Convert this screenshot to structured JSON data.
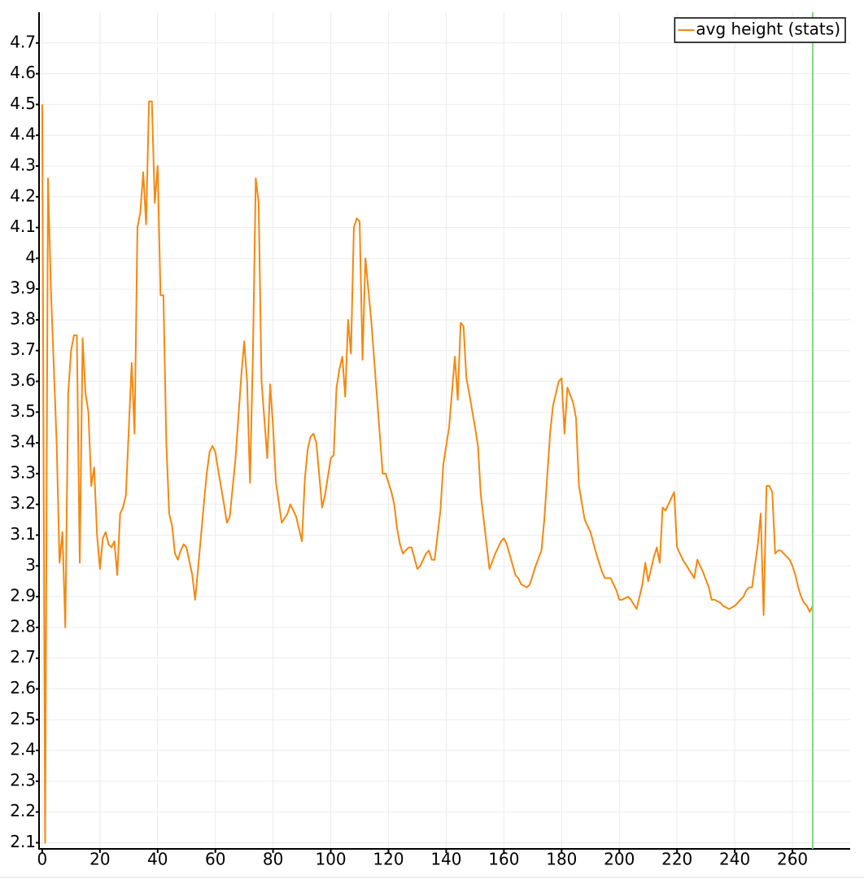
{
  "chart_data": {
    "type": "line",
    "x": [
      0,
      1,
      2,
      3,
      5,
      6,
      7,
      8,
      9,
      10,
      11,
      12,
      13,
      14,
      15,
      16,
      17,
      18,
      19,
      20,
      21,
      22,
      23,
      24,
      25,
      26,
      27,
      28,
      29,
      31,
      32,
      33,
      34,
      35,
      36,
      37,
      38,
      39,
      40,
      41,
      42,
      43,
      44,
      45,
      46,
      47,
      48,
      49,
      50,
      52,
      53,
      54,
      56,
      57,
      58,
      59,
      60,
      61,
      63,
      64,
      65,
      67,
      69,
      70,
      71,
      72,
      73,
      74,
      75,
      76,
      78,
      79,
      80,
      81,
      83,
      85,
      86,
      88,
      89,
      90,
      91,
      92,
      93,
      94,
      95,
      97,
      98,
      99,
      100,
      101,
      102,
      103,
      104,
      105,
      106,
      107,
      108,
      109,
      110,
      111,
      112,
      114,
      116,
      118,
      119,
      121,
      122,
      123,
      124,
      125,
      127,
      128,
      130,
      131,
      132,
      133,
      134,
      135,
      136,
      138,
      139,
      141,
      143,
      144,
      145,
      146,
      147,
      148,
      150,
      151,
      152,
      155,
      157,
      159,
      160,
      161,
      164,
      165,
      166,
      168,
      169,
      171,
      173,
      174,
      176,
      177,
      179,
      180,
      181,
      182,
      184,
      185,
      186,
      188,
      189,
      190,
      192,
      194,
      195,
      197,
      199,
      200,
      201,
      203,
      204,
      206,
      208,
      209,
      210,
      212,
      213,
      214,
      215,
      216,
      218,
      219,
      220,
      222,
      224,
      226,
      227,
      229,
      231,
      232,
      233,
      235,
      236,
      238,
      240,
      241,
      242,
      243,
      244,
      245,
      246,
      248,
      249,
      250,
      251,
      252,
      253,
      254,
      255,
      256,
      257,
      259,
      260,
      261,
      262,
      263,
      264,
      265,
      266,
      267
    ],
    "series": [
      {
        "name": "avg height (stats)",
        "color": "#f5880f",
        "values": [
          4.5,
          2.1,
          4.26,
          3.9,
          3.4,
          3.01,
          3.11,
          2.8,
          3.56,
          3.7,
          3.75,
          3.75,
          3.01,
          3.74,
          3.56,
          3.5,
          3.26,
          3.32,
          3.1,
          2.99,
          3.09,
          3.11,
          3.07,
          3.06,
          3.08,
          2.97,
          3.17,
          3.19,
          3.23,
          3.66,
          3.43,
          4.1,
          4.15,
          4.28,
          4.11,
          4.51,
          4.51,
          4.18,
          4.3,
          3.88,
          3.88,
          3.4,
          3.17,
          3.13,
          3.04,
          3.02,
          3.05,
          3.07,
          3.06,
          2.97,
          2.89,
          2.99,
          3.2,
          3.3,
          3.37,
          3.39,
          3.37,
          3.31,
          3.2,
          3.14,
          3.16,
          3.35,
          3.62,
          3.73,
          3.6,
          3.27,
          3.68,
          4.26,
          4.18,
          3.6,
          3.35,
          3.59,
          3.45,
          3.27,
          3.14,
          3.17,
          3.2,
          3.16,
          3.12,
          3.08,
          3.28,
          3.38,
          3.42,
          3.43,
          3.4,
          3.19,
          3.23,
          3.29,
          3.35,
          3.36,
          3.58,
          3.64,
          3.68,
          3.55,
          3.8,
          3.69,
          4.1,
          4.13,
          4.12,
          3.67,
          4.0,
          3.8,
          3.55,
          3.3,
          3.3,
          3.24,
          3.2,
          3.12,
          3.07,
          3.04,
          3.06,
          3.06,
          2.99,
          3.0,
          3.02,
          3.04,
          3.05,
          3.02,
          3.02,
          3.18,
          3.33,
          3.45,
          3.68,
          3.54,
          3.79,
          3.78,
          3.61,
          3.56,
          3.45,
          3.39,
          3.23,
          2.99,
          3.04,
          3.08,
          3.09,
          3.07,
          2.97,
          2.96,
          2.94,
          2.93,
          2.94,
          3.0,
          3.05,
          3.15,
          3.43,
          3.52,
          3.6,
          3.61,
          3.43,
          3.58,
          3.53,
          3.48,
          3.26,
          3.15,
          3.13,
          3.11,
          3.04,
          2.98,
          2.96,
          2.96,
          2.92,
          2.89,
          2.89,
          2.9,
          2.89,
          2.86,
          2.94,
          3.01,
          2.95,
          3.03,
          3.06,
          3.01,
          3.19,
          3.18,
          3.22,
          3.24,
          3.06,
          3.02,
          2.99,
          2.96,
          3.02,
          2.98,
          2.93,
          2.89,
          2.89,
          2.88,
          2.87,
          2.86,
          2.87,
          2.88,
          2.89,
          2.9,
          2.92,
          2.93,
          2.93,
          3.07,
          3.17,
          2.84,
          3.26,
          3.26,
          3.24,
          3.04,
          3.05,
          3.05,
          3.04,
          3.02,
          3.0,
          2.97,
          2.93,
          2.9,
          2.88,
          2.87,
          2.85,
          2.87
        ]
      }
    ],
    "cursor_x": 267,
    "cursor_color": "#7ed87e",
    "xlim": [
      -1.1,
      280
    ],
    "ylim": [
      2.08,
      4.8
    ],
    "xticks": [
      0,
      20,
      40,
      60,
      80,
      100,
      120,
      140,
      160,
      180,
      200,
      220,
      240,
      260
    ],
    "yticks": [
      2.1,
      2.2,
      2.3,
      2.4,
      2.5,
      2.6,
      2.7,
      2.8,
      2.9,
      3,
      3.1,
      3.2,
      3.3,
      3.4,
      3.5,
      3.6,
      3.7,
      3.8,
      3.9,
      4,
      4.1,
      4.2,
      4.3,
      4.4,
      4.5,
      4.6,
      4.7
    ],
    "grid": true,
    "legend": "top-right"
  }
}
